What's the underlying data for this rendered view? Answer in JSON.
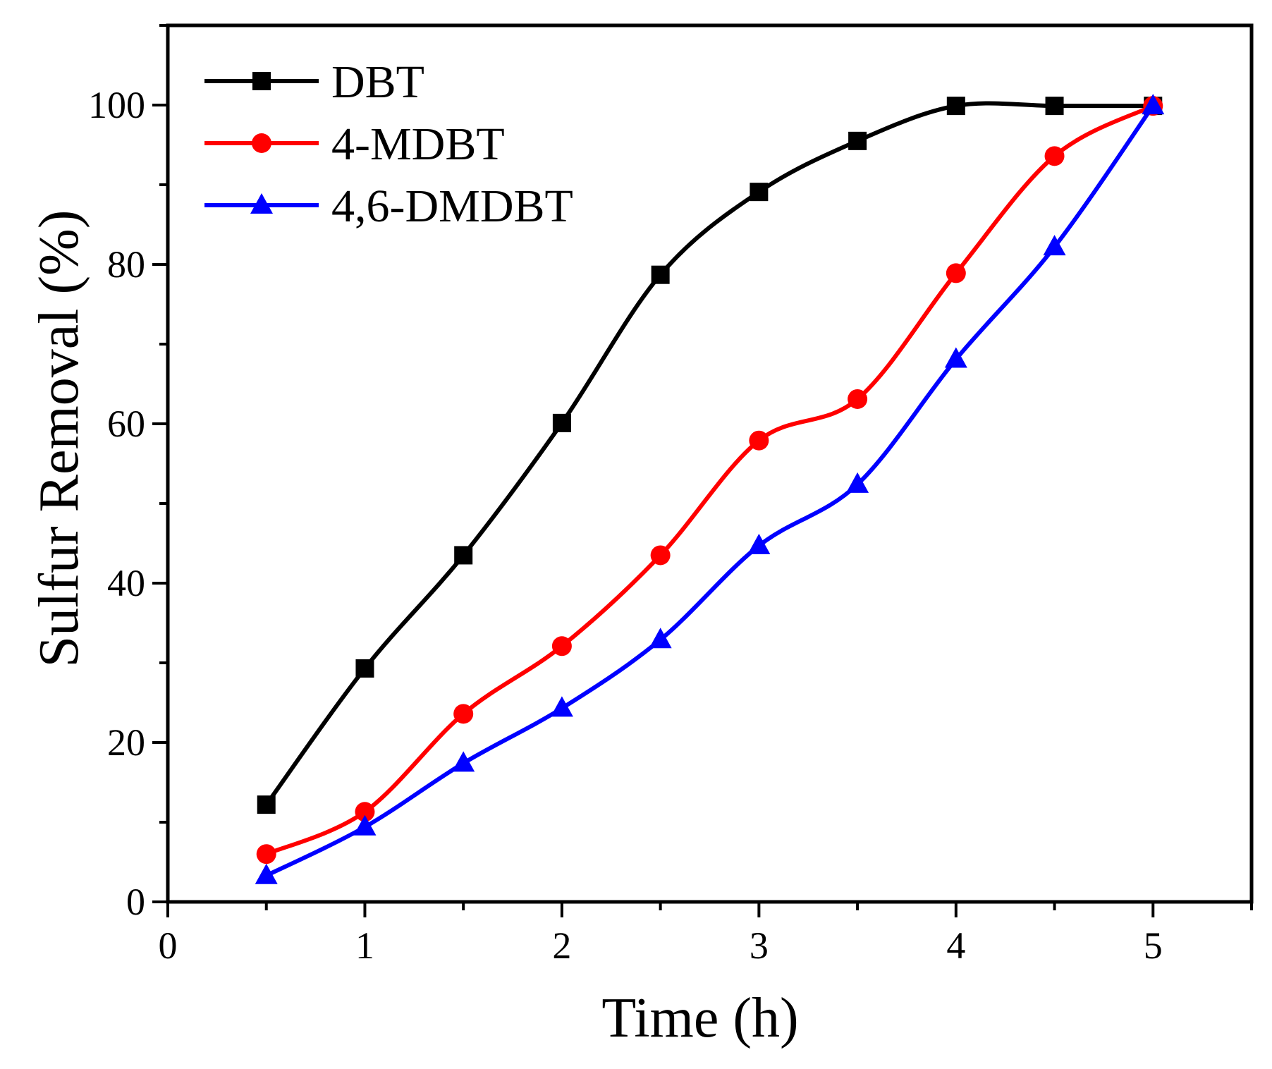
{
  "chart_data": {
    "type": "line",
    "title": "",
    "xlabel": "Time (h)",
    "ylabel": "Sulfur Removal (%)",
    "xlim": [
      0,
      5.5
    ],
    "ylim": [
      0,
      110
    ],
    "xticks": [
      0,
      1,
      2,
      3,
      4,
      5
    ],
    "yticks": [
      0,
      20,
      40,
      60,
      80,
      100
    ],
    "xtick_labels": [
      "0",
      "1",
      "2",
      "3",
      "4",
      "5"
    ],
    "ytick_labels": [
      "0",
      "20",
      "40",
      "60",
      "80",
      "100"
    ],
    "grid": false,
    "legend_position": "top-left",
    "x": [
      0.5,
      1,
      1.5,
      2,
      2.5,
      3,
      3.5,
      4,
      4.5,
      5
    ],
    "series": [
      {
        "name": "DBT",
        "color": "#000000",
        "marker": "square",
        "values": [
          12.2,
          29.3,
          43.5,
          60.1,
          78.7,
          89.1,
          95.5,
          99.9,
          99.9,
          99.9
        ]
      },
      {
        "name": "4-MDBT",
        "color": "#ff0000",
        "marker": "circle",
        "values": [
          6.0,
          11.3,
          23.6,
          32.1,
          43.5,
          57.9,
          63.1,
          78.9,
          93.6,
          99.9
        ]
      },
      {
        "name": "4,6-DMDBT",
        "color": "#0000ff",
        "marker": "triangle",
        "values": [
          3.3,
          9.4,
          17.4,
          24.3,
          32.9,
          44.7,
          52.4,
          68.1,
          82.2,
          99.9
        ]
      }
    ]
  }
}
